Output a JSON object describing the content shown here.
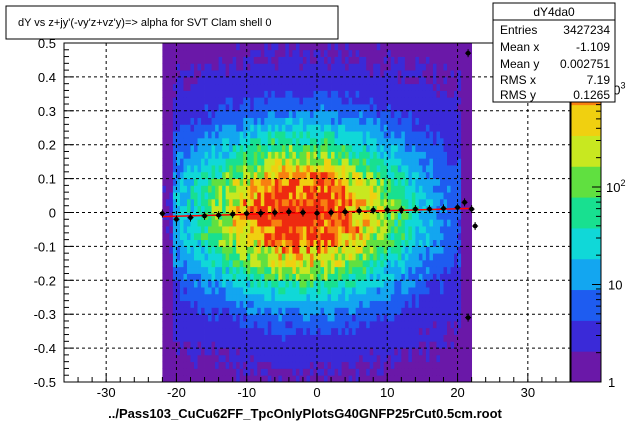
{
  "title": "dY vs  z+jy'(-vy'z+vz'y)=> alpha for SVT Clam shell 0",
  "xlabel": "../Pass103_CuCu62FF_TpcOnlyPlotsG40GNFP25rCut0.5cm.root",
  "stats": {
    "name": "dY4da0",
    "rows": [
      {
        "label": "Entries",
        "value": "3427234"
      },
      {
        "label": "Mean x",
        "value": "-1.109"
      },
      {
        "label": "Mean y",
        "value": "0.002751"
      },
      {
        "label": "RMS x",
        "value": "7.19"
      },
      {
        "label": "RMS y",
        "value": "0.1265"
      }
    ]
  },
  "chart_data": {
    "type": "heatmap",
    "title": "dY vs  z+jy'(-vy'z+vz'y)=> alpha for SVT Clam shell 0",
    "xlabel": "../Pass103_CuCu62FF_TpcOnlyPlotsG40GNFP25rCut0.5cm.root",
    "ylabel": "",
    "xlim": [
      -36,
      36
    ],
    "ylim": [
      -0.5,
      0.5
    ],
    "x_ticks": [
      -30,
      -20,
      -10,
      0,
      10,
      20,
      30
    ],
    "y_ticks": [
      0.5,
      0.4,
      0.3,
      0.2,
      0.1,
      0,
      -0.1,
      -0.2,
      -0.3,
      -0.4,
      -0.5
    ],
    "grid": true,
    "colorbar": {
      "scale": "log",
      "ticks": [
        "10^3",
        "10^2",
        "10",
        "1"
      ],
      "colors": [
        "#6a18a8",
        "#3a2ad8",
        "#1e5cf0",
        "#13a6f0",
        "#10d8d8",
        "#18e090",
        "#60e040",
        "#c8e820",
        "#f0d010",
        "#f88010",
        "#ee2a10"
      ]
    },
    "density": {
      "x_range": [
        -22,
        22
      ],
      "y_range": [
        -0.5,
        0.5
      ],
      "center": {
        "x": -2,
        "y": 0
      },
      "peak": 3000
    },
    "profile": {
      "name": "profile",
      "color": "#000000",
      "points": [
        {
          "x": -22,
          "y": -0.003
        },
        {
          "x": -20,
          "y": -0.02
        },
        {
          "x": -18,
          "y": -0.015
        },
        {
          "x": -16,
          "y": -0.01
        },
        {
          "x": -14,
          "y": -0.008
        },
        {
          "x": -12,
          "y": -0.005
        },
        {
          "x": -10,
          "y": -0.003
        },
        {
          "x": -8,
          "y": -0.002
        },
        {
          "x": -6,
          "y": 0.0
        },
        {
          "x": -4,
          "y": 0.002
        },
        {
          "x": -2,
          "y": 0.0
        },
        {
          "x": 0,
          "y": -0.002
        },
        {
          "x": 2,
          "y": 0.0
        },
        {
          "x": 4,
          "y": 0.002
        },
        {
          "x": 6,
          "y": 0.005
        },
        {
          "x": 8,
          "y": 0.007
        },
        {
          "x": 10,
          "y": 0.008
        },
        {
          "x": 12,
          "y": 0.008
        },
        {
          "x": 14,
          "y": 0.01
        },
        {
          "x": 16,
          "y": 0.01
        },
        {
          "x": 18,
          "y": 0.012
        },
        {
          "x": 20,
          "y": 0.015
        },
        {
          "x": 21,
          "y": 0.03
        },
        {
          "x": 21.5,
          "y": 0.47
        },
        {
          "x": 21.5,
          "y": -0.31
        },
        {
          "x": 22,
          "y": 0.01
        },
        {
          "x": 22.5,
          "y": -0.04
        }
      ]
    },
    "fit": {
      "color": "#ff0000",
      "x_range": [
        -22,
        22
      ],
      "y_at_start": -0.012,
      "y_at_end": 0.012
    }
  }
}
